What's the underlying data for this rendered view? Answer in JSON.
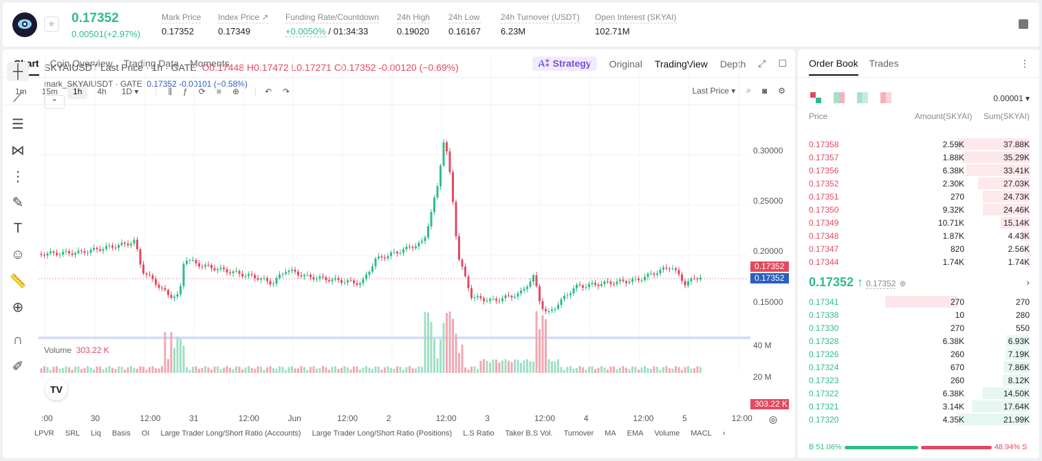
{
  "header": {
    "price": "0.17352",
    "change": "0.00501(+2.97%)",
    "stats": [
      {
        "label": "Mark Price",
        "value": "0.17352"
      },
      {
        "label": "Index Price ↗",
        "value": "0.17349"
      },
      {
        "label": "Funding Rate/Countdown",
        "value_green": "+0.0050%",
        "value": "/ 01:34:33"
      },
      {
        "label": "24h High",
        "value": "0.19020"
      },
      {
        "label": "24h Low",
        "value": "0.16167"
      },
      {
        "label": "24h Turnover (USDT)",
        "value": "6.23M"
      },
      {
        "label": "Open Interest (SKYAI)",
        "value": "102.71M"
      }
    ]
  },
  "chart_tabs": [
    "Chart",
    "Coin Overview",
    "Trading Data",
    "Moments"
  ],
  "view_tabs": {
    "strategy": "A⁑ Strategy",
    "original": "Original",
    "tradingview": "TradingView",
    "depth": "Depth"
  },
  "intervals": [
    "1m",
    "15m",
    "1h",
    "4h",
    "1D ▾"
  ],
  "price_type": "Last Price ▾",
  "legend": {
    "symbol": "SKYAIUSDT Last Price · 1h · GATE",
    "o": "O0.17448",
    "h": "H0.17472",
    "l": "L0.17271",
    "c": "C0.17352",
    "chg": "-0.00120 (−0.69%)"
  },
  "legend2": {
    "symbol": "mark_SKYAIUSDT · GATE",
    "value": "0.17352 -0.00101 (−0.58%)"
  },
  "y_ticks": [
    "0.30000",
    "0.25000",
    "0.20000",
    "0.15000"
  ],
  "price_labels": {
    "last": "0.17352",
    "mark": "0.17352"
  },
  "volume": {
    "label": "Volume",
    "value": "303.22 K",
    "ticks": [
      "40 M",
      "20 M"
    ],
    "current": "303.22 K"
  },
  "x_ticks": [
    ":00",
    "30",
    "12:00",
    "31",
    "12:00",
    "Jun",
    "12:00",
    "2",
    "12:00",
    "3",
    "12:00",
    "4",
    "12:00",
    "5",
    "12:00"
  ],
  "indicators": [
    "LPVR",
    "SRL",
    "Liq",
    "Basis",
    "OI",
    "Large Trader Long/Short Ratio (Accounts)",
    "Large Trader Long/Short Ratio (Positions)",
    "L.S Ratio",
    "Taker B.S Vol.",
    "Turnover",
    "MA",
    "EMA",
    "Volume",
    "MACL"
  ],
  "orderbook": {
    "tabs": [
      "Order Book",
      "Trades"
    ],
    "precision": "0.00001 ▾",
    "headers": [
      "Price",
      "Amount(SKYAI)",
      "Sum(SKYAI)"
    ],
    "asks": [
      {
        "price": "0.17358",
        "amount": "2.59K",
        "sum": "37.88K",
        "depth": 1.0
      },
      {
        "price": "0.17357",
        "amount": "1.88K",
        "sum": "35.29K",
        "depth": 0.93
      },
      {
        "price": "0.17356",
        "amount": "6.38K",
        "sum": "33.41K",
        "depth": 0.88
      },
      {
        "price": "0.17352",
        "amount": "2.30K",
        "sum": "27.03K",
        "depth": 0.71
      },
      {
        "price": "0.17351",
        "amount": "270",
        "sum": "24.73K",
        "depth": 0.65
      },
      {
        "price": "0.17350",
        "amount": "9.32K",
        "sum": "24.46K",
        "depth": 0.65
      },
      {
        "price": "0.17349",
        "amount": "10.71K",
        "sum": "15.14K",
        "depth": 0.4
      },
      {
        "price": "0.17348",
        "amount": "1.87K",
        "sum": "4.43K",
        "depth": 0.12
      },
      {
        "price": "0.17347",
        "amount": "820",
        "sum": "2.56K",
        "depth": 0.07
      },
      {
        "price": "0.17344",
        "amount": "1.74K",
        "sum": "1.74K",
        "depth": 0.05
      }
    ],
    "mid_price": "0.17352 ↑",
    "mid_mark": "0.17352",
    "bids": [
      {
        "price": "0.17341",
        "amount": "270",
        "sum": "270",
        "depth": 0.0
      },
      {
        "price": "0.17338",
        "amount": "10",
        "sum": "280",
        "depth": 0.0
      },
      {
        "price": "0.17330",
        "amount": "270",
        "sum": "550",
        "depth": 0.0
      },
      {
        "price": "0.17328",
        "amount": "6.38K",
        "sum": "6.93K",
        "depth": 0.32
      },
      {
        "price": "0.17326",
        "amount": "260",
        "sum": "7.19K",
        "depth": 0.33
      },
      {
        "price": "0.17324",
        "amount": "670",
        "sum": "7.86K",
        "depth": 0.36
      },
      {
        "price": "0.17323",
        "amount": "260",
        "sum": "8.12K",
        "depth": 0.37
      },
      {
        "price": "0.17322",
        "amount": "6.38K",
        "sum": "14.50K",
        "depth": 0.66
      },
      {
        "price": "0.17321",
        "amount": "3.14K",
        "sum": "17.64K",
        "depth": 0.8
      },
      {
        "price": "0.17320",
        "amount": "4.35K",
        "sum": "21.99K",
        "depth": 1.0
      }
    ],
    "buy_ratio": "B 51.06%",
    "sell_ratio": "48.94% S",
    "buy_pct": 51.06
  },
  "colors": {
    "up": "#2ebd85",
    "down": "#e34a5f"
  }
}
